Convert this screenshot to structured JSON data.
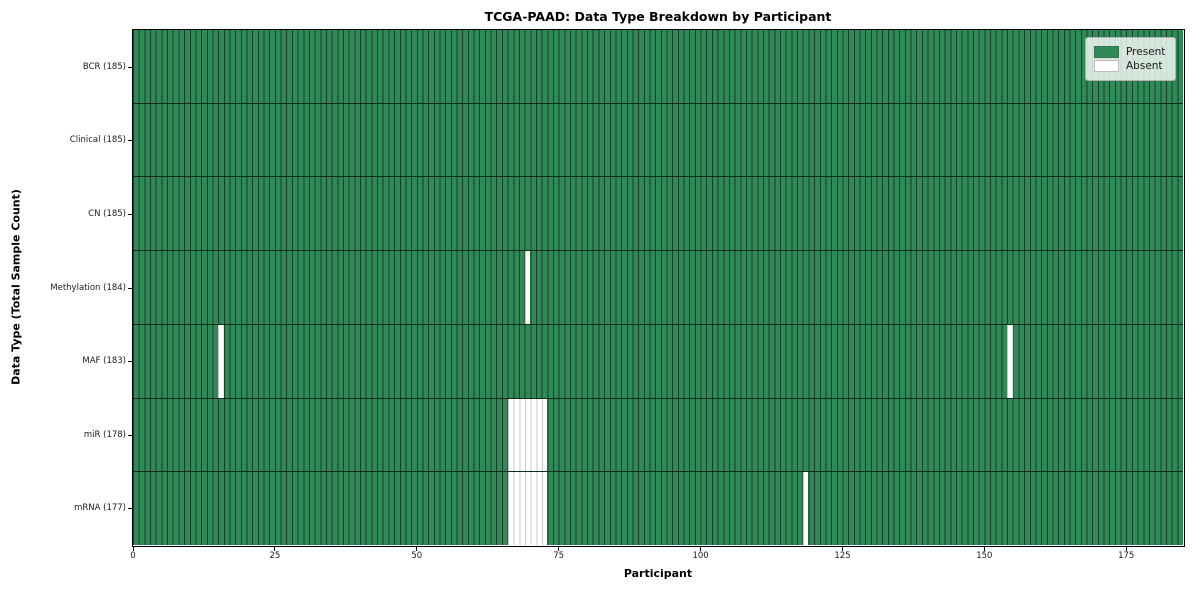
{
  "chart_data": {
    "type": "heatmap",
    "title": "TCGA-PAAD: Data Type Breakdown by Participant",
    "xlabel": "Participant",
    "ylabel": "Data Type (Total Sample Count)",
    "x_range": [
      0,
      185
    ],
    "x_ticks": [
      0,
      25,
      50,
      75,
      100,
      125,
      150,
      175
    ],
    "n_participants": 185,
    "grid": "cell-edges",
    "legend": {
      "position": "upper right",
      "entries": [
        {
          "label": "Present",
          "color": "#2e8b57"
        },
        {
          "label": "Absent",
          "color": "#ffffff"
        }
      ]
    },
    "colors": {
      "present": "#2e8b57",
      "absent": "#ffffff",
      "cell_edge": "#1d3b29",
      "absent_edge": "#c9c9c9"
    },
    "rows": [
      {
        "label": "BCR (185)",
        "data_type": "BCR",
        "present_count": 185,
        "absent_participants": []
      },
      {
        "label": "Clinical (185)",
        "data_type": "Clinical",
        "present_count": 185,
        "absent_participants": []
      },
      {
        "label": "CN (185)",
        "data_type": "CN",
        "present_count": 185,
        "absent_participants": []
      },
      {
        "label": "Methylation (184)",
        "data_type": "Methylation",
        "present_count": 184,
        "absent_participants": [
          69
        ]
      },
      {
        "label": "MAF (183)",
        "data_type": "MAF",
        "present_count": 183,
        "absent_participants": [
          15,
          154
        ]
      },
      {
        "label": "miR (178)",
        "data_type": "miR",
        "present_count": 178,
        "absent_participants": [
          66,
          67,
          68,
          69,
          70,
          71,
          72
        ]
      },
      {
        "label": "mRNA (177)",
        "data_type": "mRNA",
        "present_count": 177,
        "absent_participants": [
          66,
          67,
          68,
          69,
          70,
          71,
          72,
          118
        ]
      }
    ]
  }
}
